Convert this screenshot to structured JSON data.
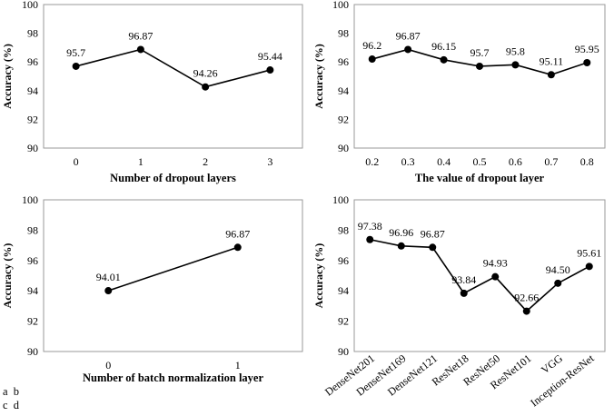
{
  "panel_tags": {
    "line1": "a  b",
    "line2": "c  d"
  },
  "chart_data": [
    {
      "id": "a",
      "type": "line",
      "categories": [
        "0",
        "1",
        "2",
        "3"
      ],
      "values": [
        95.7,
        96.87,
        94.26,
        95.44
      ],
      "labels": [
        "95.7",
        "96.87",
        "94.26",
        "95.44"
      ],
      "xlabel": "Number of dropout layers",
      "ylabel": "Accuracy (%)",
      "ylim": [
        90,
        100
      ],
      "yticks": [
        "90",
        "92",
        "94",
        "96",
        "98",
        "100"
      ]
    },
    {
      "id": "b",
      "type": "line",
      "categories": [
        "0.2",
        "0.3",
        "0.4",
        "0.5",
        "0.6",
        "0.7",
        "0.8"
      ],
      "values": [
        96.2,
        96.87,
        96.15,
        95.7,
        95.8,
        95.11,
        95.95
      ],
      "labels": [
        "96.2",
        "96.87",
        "96.15",
        "95.7",
        "95.8",
        "95.11",
        "95.95"
      ],
      "xlabel": "The value of dropout layer",
      "ylabel": "Accuracy (%)",
      "ylim": [
        90,
        100
      ],
      "yticks": [
        "90",
        "92",
        "94",
        "96",
        "98",
        "100"
      ]
    },
    {
      "id": "c",
      "type": "line",
      "categories": [
        "0",
        "1"
      ],
      "values": [
        94.01,
        96.87
      ],
      "labels": [
        "94.01",
        "96.87"
      ],
      "xlabel": "Number of batch normalization layer",
      "ylabel": "Accuracy (%)",
      "ylim": [
        90,
        100
      ],
      "yticks": [
        "90",
        "92",
        "94",
        "96",
        "98",
        "100"
      ]
    },
    {
      "id": "d",
      "type": "line",
      "categories": [
        "DenseNet201",
        "DenseNet169",
        "DenseNet121",
        "ResNet18",
        "ResNet50",
        "ResNet101",
        "VGG",
        "Inception-ResNet"
      ],
      "values": [
        97.38,
        96.96,
        96.87,
        93.84,
        94.93,
        92.66,
        94.5,
        95.61
      ],
      "labels": [
        "97.38",
        "96.96",
        "96.87",
        "93.84",
        "94.93",
        "92.66",
        "94.50",
        "95.61"
      ],
      "xlabel": "",
      "ylabel": "Accuracy (%)",
      "ylim": [
        90,
        100
      ],
      "yticks": [
        "90",
        "92",
        "94",
        "96",
        "98",
        "100"
      ]
    }
  ]
}
